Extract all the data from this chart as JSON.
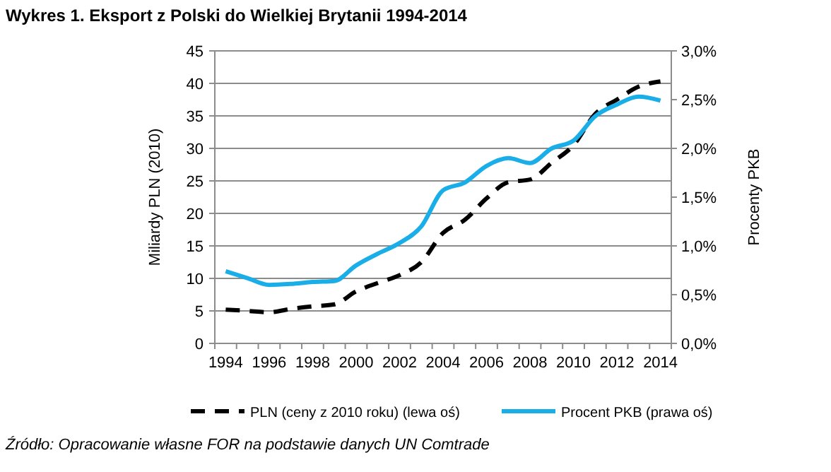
{
  "chart_data": {
    "type": "line",
    "title": "Wykres 1. Eksport z Polski do Wielkiej Brytanii 1994-2014",
    "ylabel": "Miliardy PLN (2010)",
    "y2label": "Procenty PKB",
    "categories": [
      "1994",
      null,
      "1996",
      null,
      "1998",
      null,
      "2000",
      null,
      "2002",
      null,
      "2004",
      null,
      "2006",
      null,
      "2008",
      null,
      "2010",
      null,
      "2012",
      null,
      "2014"
    ],
    "series": [
      {
        "name": "PLN (ceny z 2010 roku) (lewa oś)",
        "color": "#000000",
        "line_style": "dashed",
        "values": [
          5.2,
          5.0,
          4.8,
          5.3,
          5.7,
          6.0,
          8.0,
          9.3,
          10.5,
          12.5,
          17.0,
          19.0,
          22.3,
          24.8,
          25.2,
          27.8,
          30.5,
          35.3,
          37.5,
          39.5,
          40.3
        ]
      },
      {
        "name": "Procent PKB (prawa oś)",
        "color": "#1aaee8",
        "axis": "y2",
        "line_style": "solid",
        "values": [
          0.74,
          0.67,
          0.6,
          0.61,
          0.63,
          0.64,
          0.8,
          0.92,
          1.03,
          1.2,
          1.57,
          1.65,
          1.82,
          1.9,
          1.85,
          2.0,
          2.08,
          2.33,
          2.45,
          2.53,
          2.49
        ]
      }
    ],
    "ylim": [
      0,
      45
    ],
    "yticks": [
      0,
      5,
      10,
      15,
      20,
      25,
      30,
      35,
      40,
      45
    ],
    "y2lim": [
      0,
      3
    ],
    "y2ticks": [
      {
        "value": 0,
        "label": "0,0%"
      },
      {
        "value": 0.5,
        "label": "0,5%"
      },
      {
        "value": 1,
        "label": "1,0%"
      },
      {
        "value": 1.5,
        "label": "1,5%"
      },
      {
        "value": 2,
        "label": "2,0%"
      },
      {
        "value": 2.5,
        "label": "2,5%"
      },
      {
        "value": 3,
        "label": "3,0%"
      }
    ],
    "grid": "y",
    "legend": "bottom",
    "marker": "none",
    "annotations": [
      "Źródło: Opracowanie własne FOR na podstawie danych UN Comtrade"
    ]
  }
}
